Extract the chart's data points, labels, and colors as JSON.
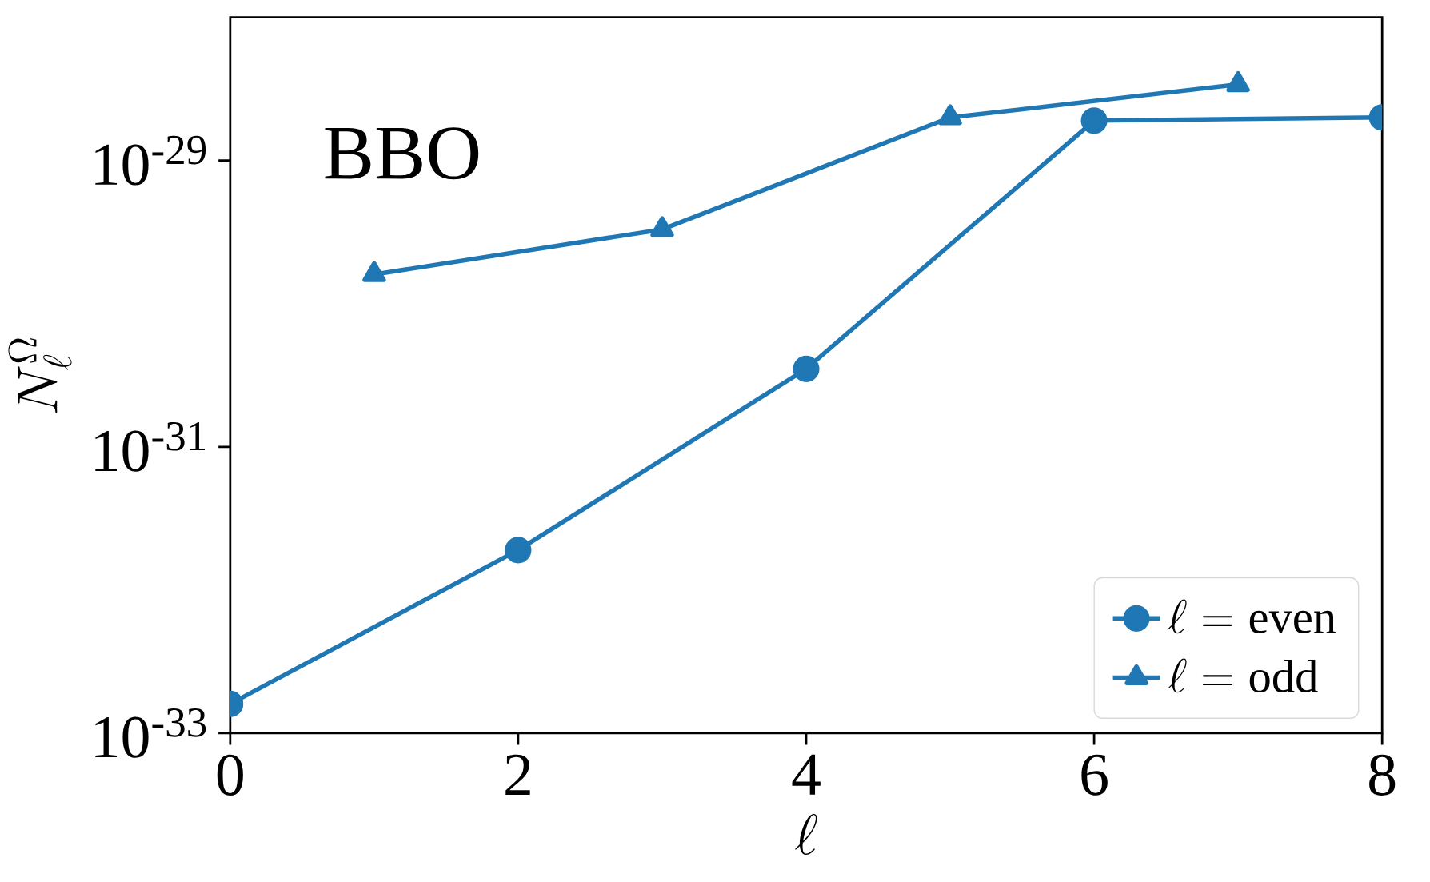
{
  "chart_data": {
    "type": "line",
    "xlabel": "\\ell",
    "ylabel": "N_\\ell^\\Omega",
    "log": "y",
    "xlim": [
      0,
      8
    ],
    "xticks": [
      0,
      2,
      4,
      6,
      8
    ],
    "ylim": [
      1e-33,
      1e-28
    ],
    "yticks": [
      {
        "value": 1e-33,
        "label": "10$^{-33}$"
      },
      {
        "value": 1e-31,
        "label": "10$^{-31}$"
      },
      {
        "value": 1e-29,
        "label": "10$^{-29}$"
      }
    ],
    "annotations": [
      "BBO"
    ],
    "legend": "bottom right",
    "grid": false,
    "line_style": "solid",
    "series": [
      {
        "name": "\\ell = \\mathrm{even}",
        "color": "#1f77b4",
        "marker": "circle",
        "x": [
          0,
          2,
          4,
          6,
          8
        ],
        "values": [
          1.6e-33,
          1.9e-32,
          3.5e-31,
          1.9e-29,
          2e-29
        ]
      },
      {
        "name": "\\ell = \\mathrm{odd}",
        "color": "#1f77b4",
        "marker": "triangle",
        "x": [
          1,
          3,
          5,
          7
        ],
        "values": [
          1.6e-30,
          3.3e-30,
          2e-29,
          3.4e-29
        ]
      }
    ]
  }
}
